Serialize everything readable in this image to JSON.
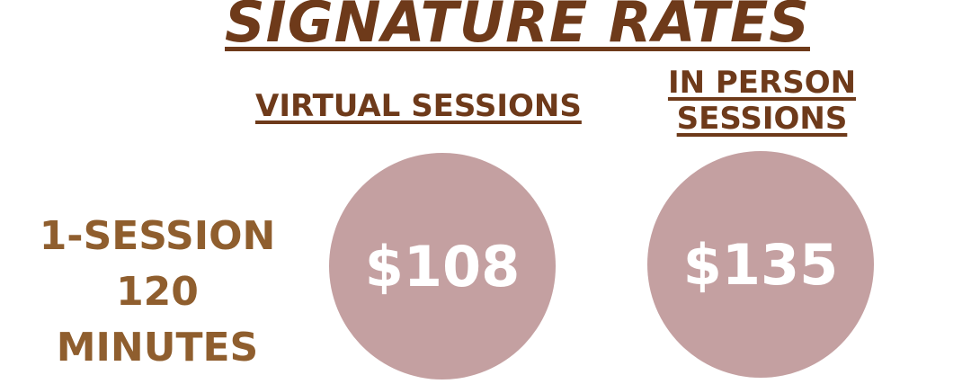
{
  "title": "SIGNATURE RATES",
  "columns": {
    "virtual": "VIRTUAL SESSIONS",
    "in_person": "IN PERSON SESSIONS"
  },
  "row": {
    "label_line1": "1-SESSION",
    "label_line2": "120",
    "label_line3": "MINUTES",
    "virtual_price": "$108",
    "in_person_price": "$135"
  },
  "colors": {
    "title": "#6e3a1a",
    "label": "#8f5e2e",
    "circle": "#c4a0a1"
  }
}
